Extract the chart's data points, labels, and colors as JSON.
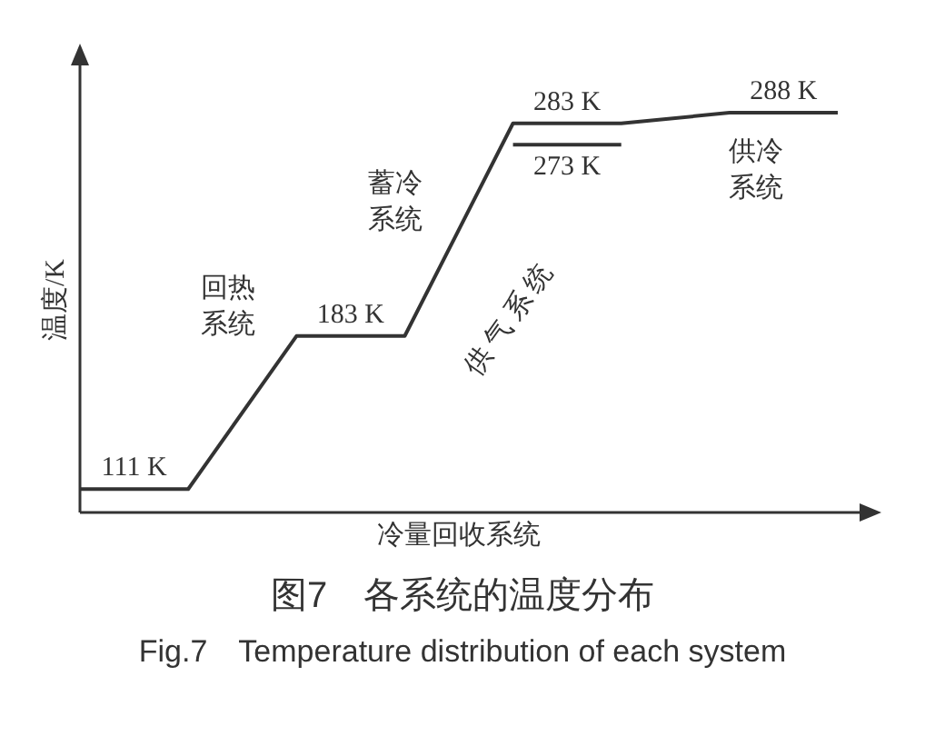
{
  "chart_data": {
    "type": "line",
    "title": "图7　各系统的温度分布",
    "subtitle": "Fig.7　Temperature distribution of each system",
    "xlabel": "冷量回收系统",
    "ylabel": "温度/K",
    "categories": [
      null,
      null,
      null,
      null,
      null,
      null,
      null,
      null
    ],
    "series": [
      {
        "color": "#333333",
        "values": [
          111,
          111,
          183,
          183,
          283,
          283,
          288,
          288
        ],
        "value_labels": [
          "111 K",
          null,
          "183 K",
          null,
          "283 K",
          null,
          "288 K",
          null
        ]
      },
      {
        "color": "#333333",
        "values": [
          null,
          null,
          null,
          null,
          273,
          273,
          null,
          null
        ],
        "value_labels": [
          null,
          null,
          null,
          null,
          "273 K",
          null,
          null,
          null
        ]
      }
    ],
    "annotations": [
      "回热系统",
      "蓄冷系统",
      "供气系统",
      "供冷系统"
    ],
    "marker": "none",
    "line_style": "solid"
  }
}
